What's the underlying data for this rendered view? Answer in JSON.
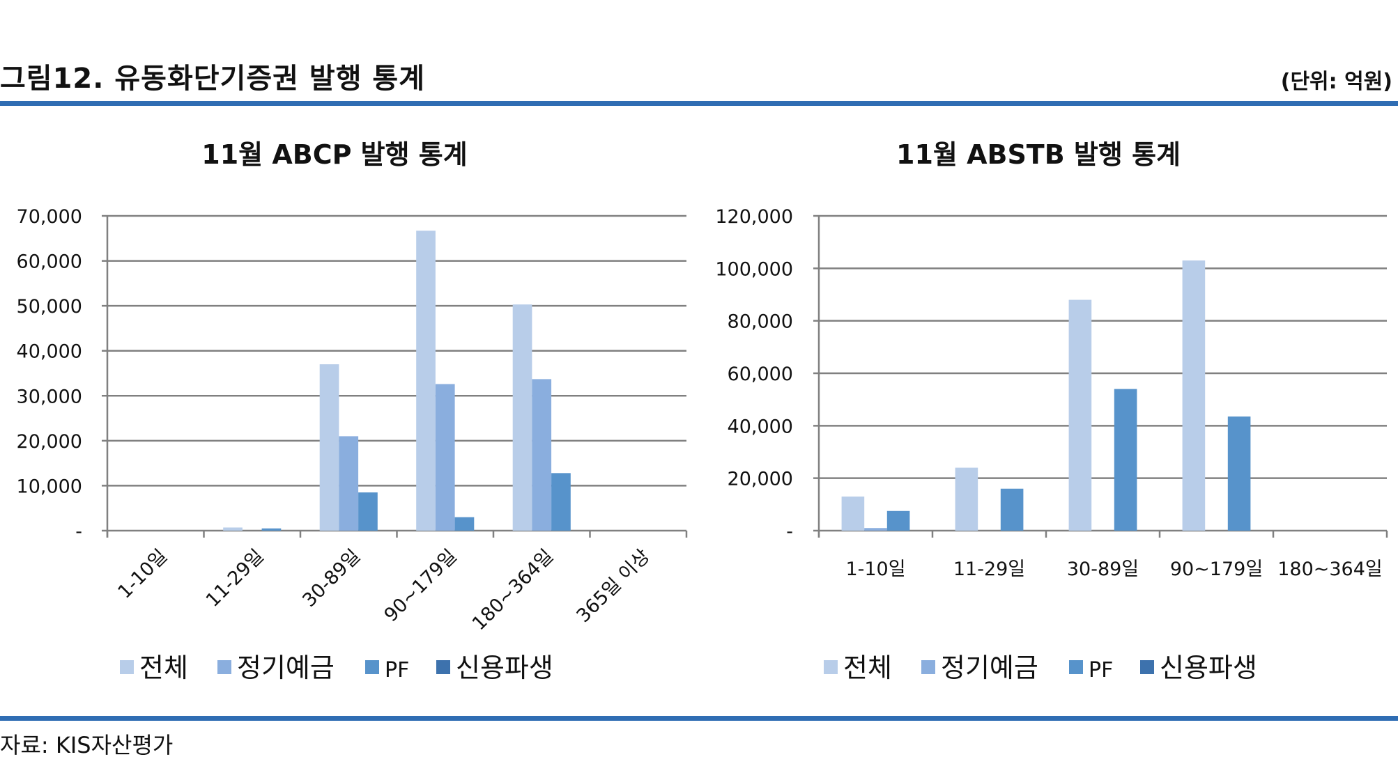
{
  "figure": {
    "title": "그림12. 유동화단기증권 발행 통계",
    "unit": "(단위: 억원)",
    "source": "자료: KIS자산평가"
  },
  "colors": {
    "rule": "#2f6db3",
    "series": [
      "#b8cde9",
      "#8aaede",
      "#5793cb",
      "#3d72ad"
    ],
    "grid": "#808080"
  },
  "chart_data": [
    {
      "type": "bar",
      "title": "11월 ABCP 발행 통계",
      "categories": [
        "1-10일",
        "11-29일",
        "30-89일",
        "90~179일",
        "180~364일",
        "365일 이상"
      ],
      "series": [
        {
          "name": "전체",
          "values": [
            0,
            700,
            37000,
            66700,
            50300,
            0
          ]
        },
        {
          "name": "정기예금",
          "values": [
            0,
            0,
            21000,
            32600,
            33700,
            0
          ]
        },
        {
          "name": "PF",
          "values": [
            0,
            500,
            8500,
            3000,
            12800,
            0
          ]
        },
        {
          "name": "신용파생",
          "values": [
            0,
            0,
            0,
            0,
            0,
            0
          ]
        }
      ],
      "ylim": [
        0,
        70000
      ],
      "yticks": [
        0,
        10000,
        20000,
        30000,
        40000,
        50000,
        60000,
        70000
      ],
      "ytick_labels": [
        "-",
        "10,000",
        "20,000",
        "30,000",
        "40,000",
        "50,000",
        "60,000",
        "70,000"
      ],
      "xlabel_rotation": -45,
      "grid": true,
      "legend_position": "bottom"
    },
    {
      "type": "bar",
      "title": "11월 ABSTB 발행 통계",
      "categories": [
        "1-10일",
        "11-29일",
        "30-89일",
        "90~179일",
        "180~364일"
      ],
      "series": [
        {
          "name": "전체",
          "values": [
            13000,
            24000,
            88000,
            103000,
            0
          ]
        },
        {
          "name": "정기예금",
          "values": [
            1000,
            0,
            0,
            0,
            0
          ]
        },
        {
          "name": "PF",
          "values": [
            7500,
            16000,
            54000,
            43500,
            0
          ]
        },
        {
          "name": "신용파생",
          "values": [
            0,
            0,
            0,
            0,
            0
          ]
        }
      ],
      "ylim": [
        0,
        120000
      ],
      "yticks": [
        0,
        20000,
        40000,
        60000,
        80000,
        100000,
        120000
      ],
      "ytick_labels": [
        "-",
        "20,000",
        "40,000",
        "60,000",
        "80,000",
        "100,000",
        "120,000"
      ],
      "xlabel_rotation": 0,
      "grid": true,
      "legend_position": "bottom"
    }
  ]
}
